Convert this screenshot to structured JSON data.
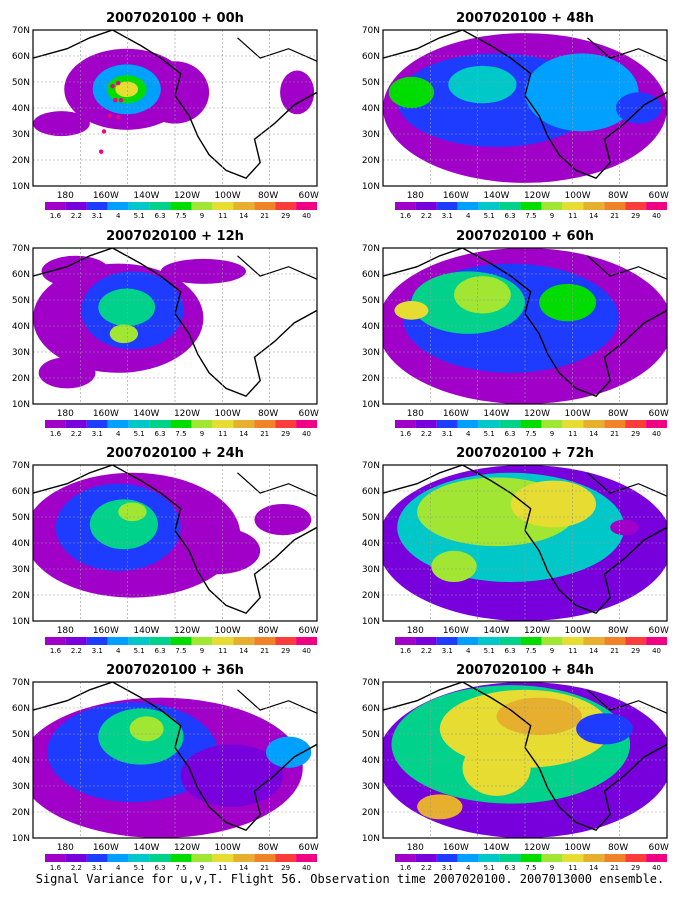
{
  "caption": "Signal Variance for u,v,T. Flight 56. Observation time 2007020100. 2007013000 ensemble.",
  "lat_labels": [
    "70N",
    "60N",
    "50N",
    "40N",
    "30N",
    "20N",
    "10N"
  ],
  "lon_labels": [
    "180",
    "160W",
    "140W",
    "120W",
    "100W",
    "80W",
    "60W"
  ],
  "colorbar": {
    "labels": [
      "1.6",
      "2.2",
      "3.1",
      "4",
      "5.1",
      "6.3",
      "7.5",
      "9",
      "11",
      "14",
      "21",
      "29",
      "40"
    ],
    "colors": [
      "#a000c8",
      "#7800dc",
      "#1e3cff",
      "#00a0ff",
      "#00c8c8",
      "#00d28c",
      "#00dc00",
      "#a0e632",
      "#e6dc32",
      "#e6af2d",
      "#f08228",
      "#fa3c3c",
      "#f00082"
    ]
  },
  "panels": [
    {
      "title": "2007020100 + 00h",
      "lead_hours": 0,
      "obs_track": true
    },
    {
      "title": "2007020100 + 48h",
      "lead_hours": 48,
      "obs_track": false
    },
    {
      "title": "2007020100 + 12h",
      "lead_hours": 12,
      "obs_track": false
    },
    {
      "title": "2007020100 + 60h",
      "lead_hours": 60,
      "obs_track": false
    },
    {
      "title": "2007020100 + 24h",
      "lead_hours": 24,
      "obs_track": false
    },
    {
      "title": "2007020100 + 72h",
      "lead_hours": 72,
      "obs_track": false
    },
    {
      "title": "2007020100 + 36h",
      "lead_hours": 36,
      "obs_track": false
    },
    {
      "title": "2007020100 + 84h",
      "lead_hours": 84,
      "obs_track": false
    }
  ]
}
